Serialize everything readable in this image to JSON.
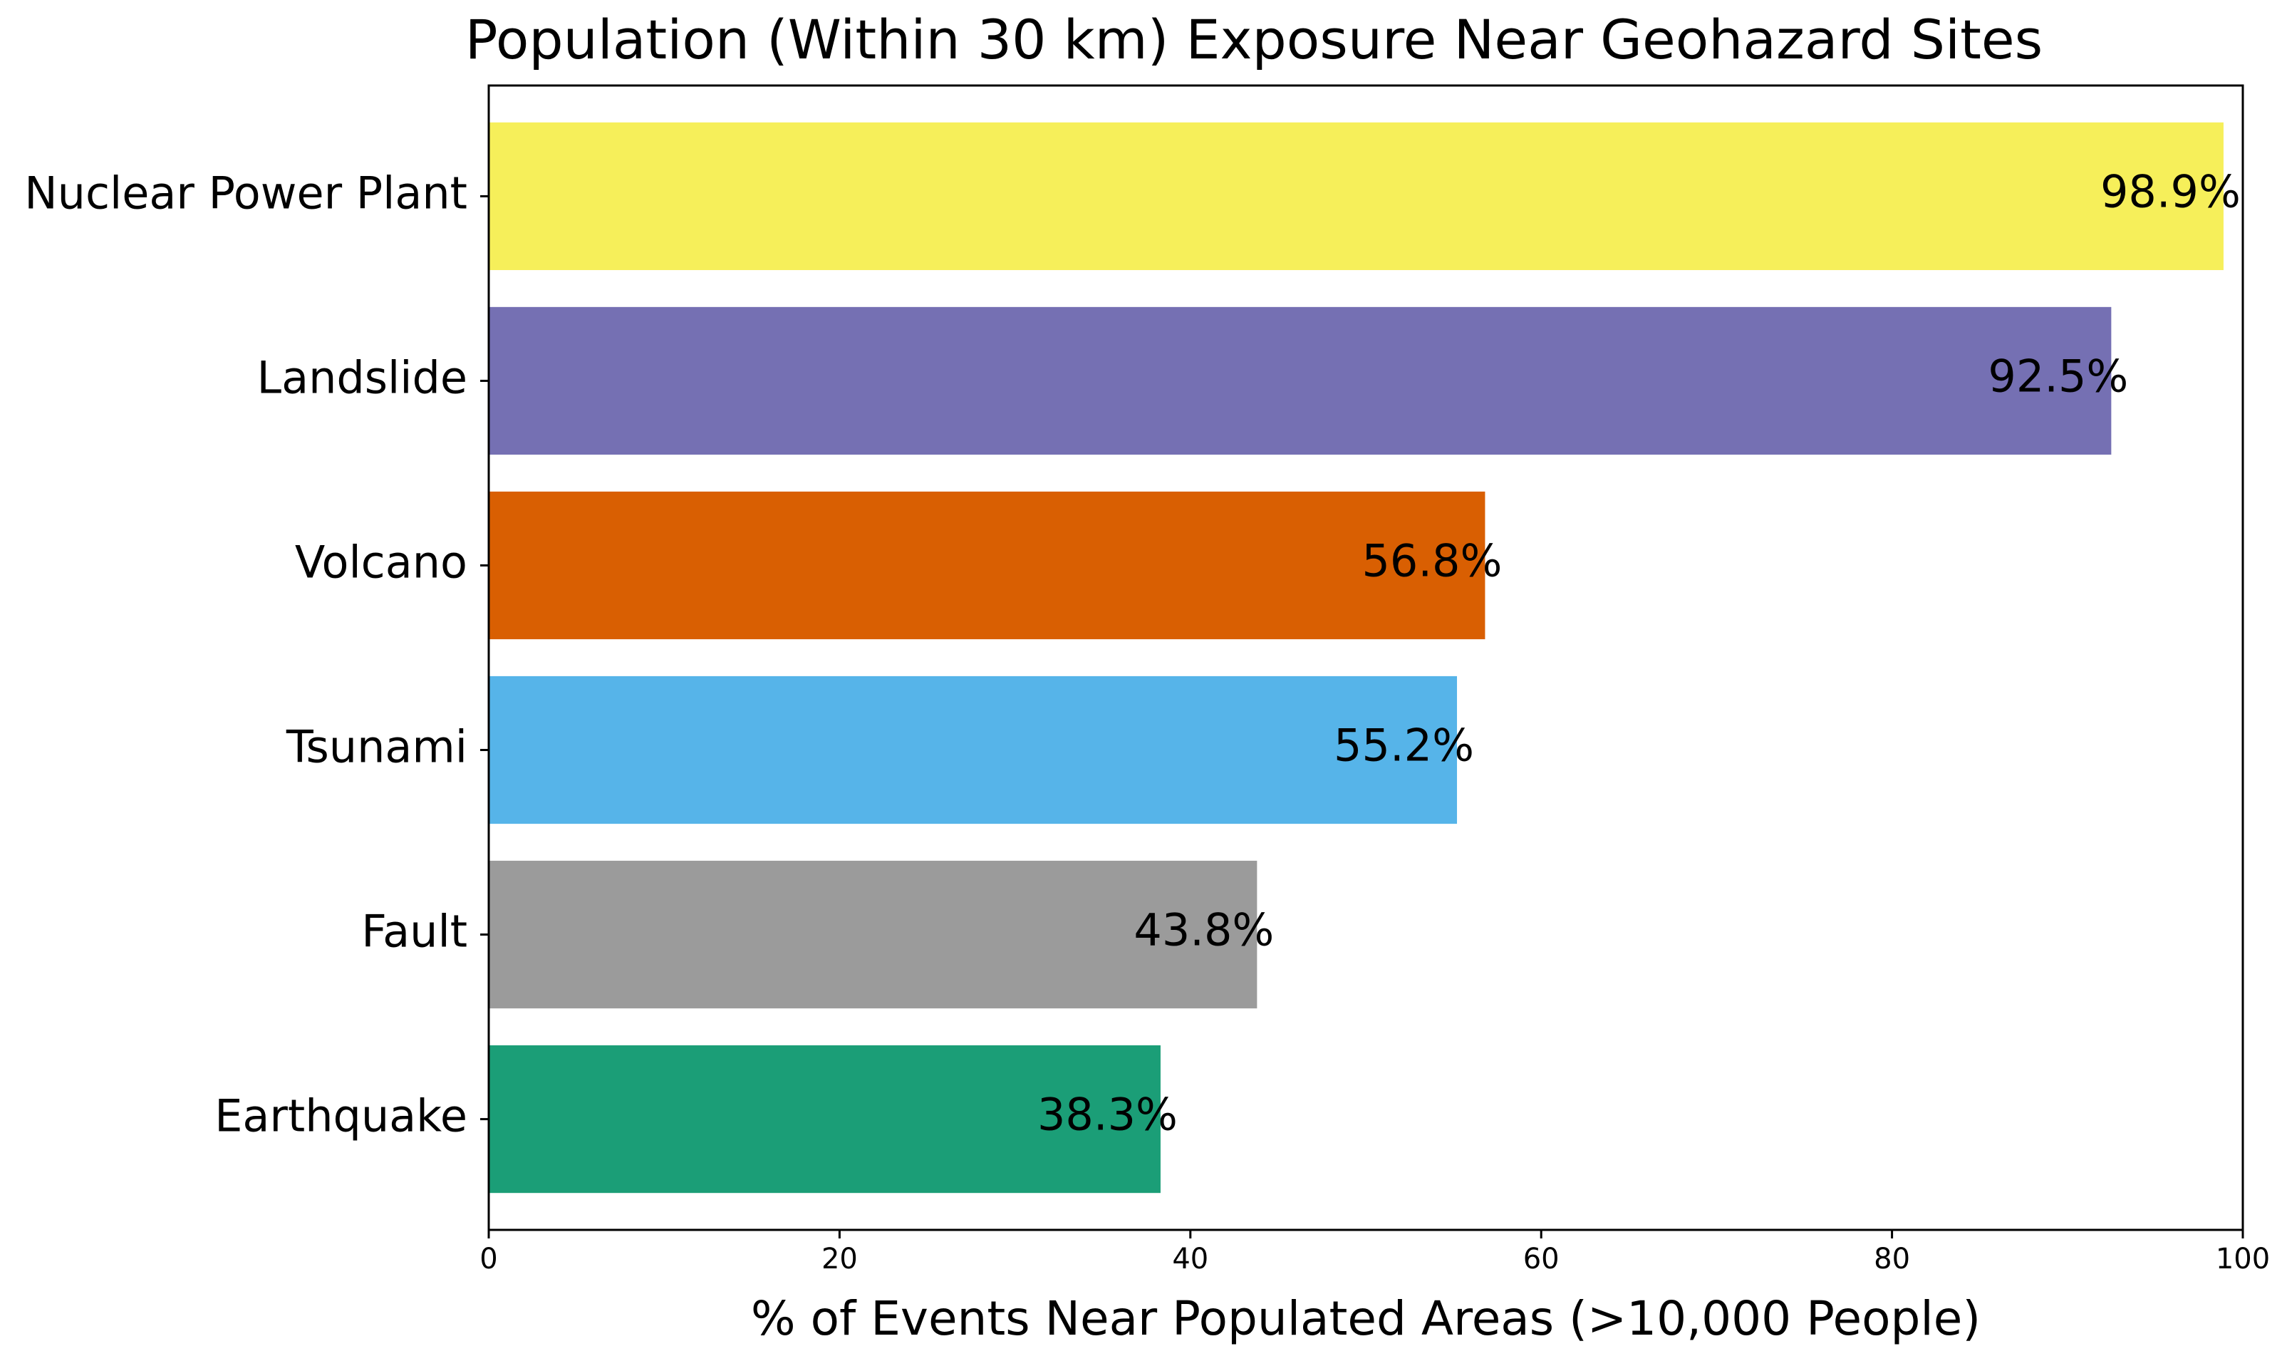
{
  "chart_data": {
    "type": "bar",
    "orientation": "horizontal",
    "title": "Population (Within 30 km) Exposure Near Geohazard Sites",
    "xlabel": "% of Events Near Populated Areas (>10,000 People)",
    "ylabel": "",
    "xlim": [
      0,
      100
    ],
    "xticks": [
      0,
      20,
      40,
      60,
      80,
      100
    ],
    "grid": false,
    "categories": [
      "Nuclear Power Plant",
      "Landslide",
      "Volcano",
      "Tsunami",
      "Fault",
      "Earthquake"
    ],
    "values": [
      98.9,
      92.5,
      56.8,
      55.2,
      43.8,
      38.3
    ],
    "data_labels": [
      "98.9%",
      "92.5%",
      "56.8%",
      "55.2%",
      "43.8%",
      "38.3%"
    ],
    "colors": [
      "#f6ef5a",
      "#7570b3",
      "#d95f02",
      "#56b4e9",
      "#9b9b9b",
      "#1b9e77"
    ]
  }
}
